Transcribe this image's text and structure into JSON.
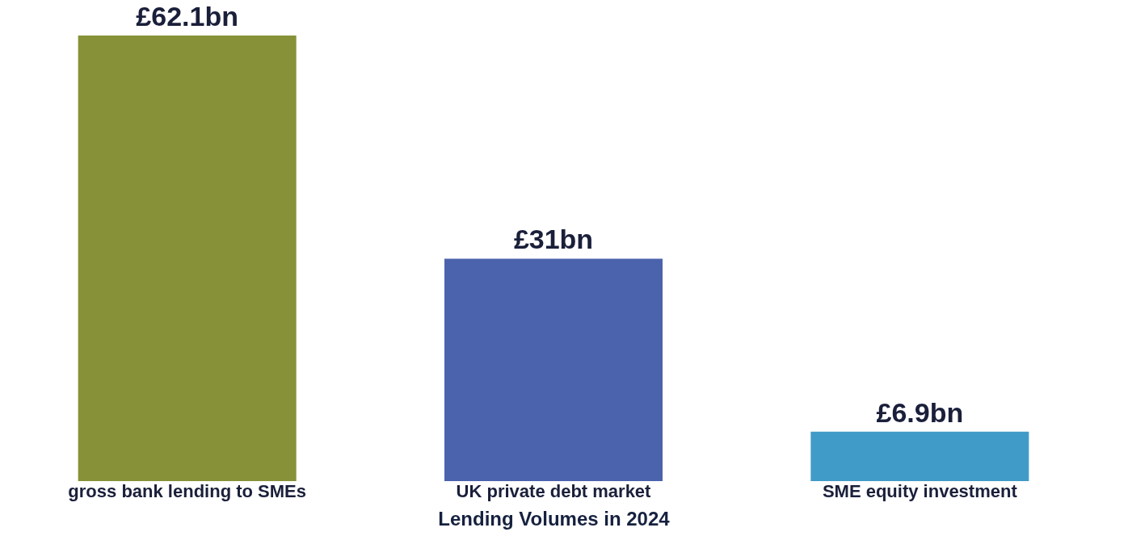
{
  "chart_data": {
    "type": "bar",
    "xlabel": "Lending Volumes in 2024",
    "categories": [
      "gross bank lending to SMEs",
      "UK private debt market",
      "SME equity investment"
    ],
    "values": [
      62.1,
      31,
      6.9
    ],
    "value_labels": [
      "£62.1bn",
      "£31bn",
      "£6.9bn"
    ],
    "colors": [
      "#879137",
      "#4b63ad",
      "#419bc8"
    ],
    "grid": false,
    "legend": false
  }
}
